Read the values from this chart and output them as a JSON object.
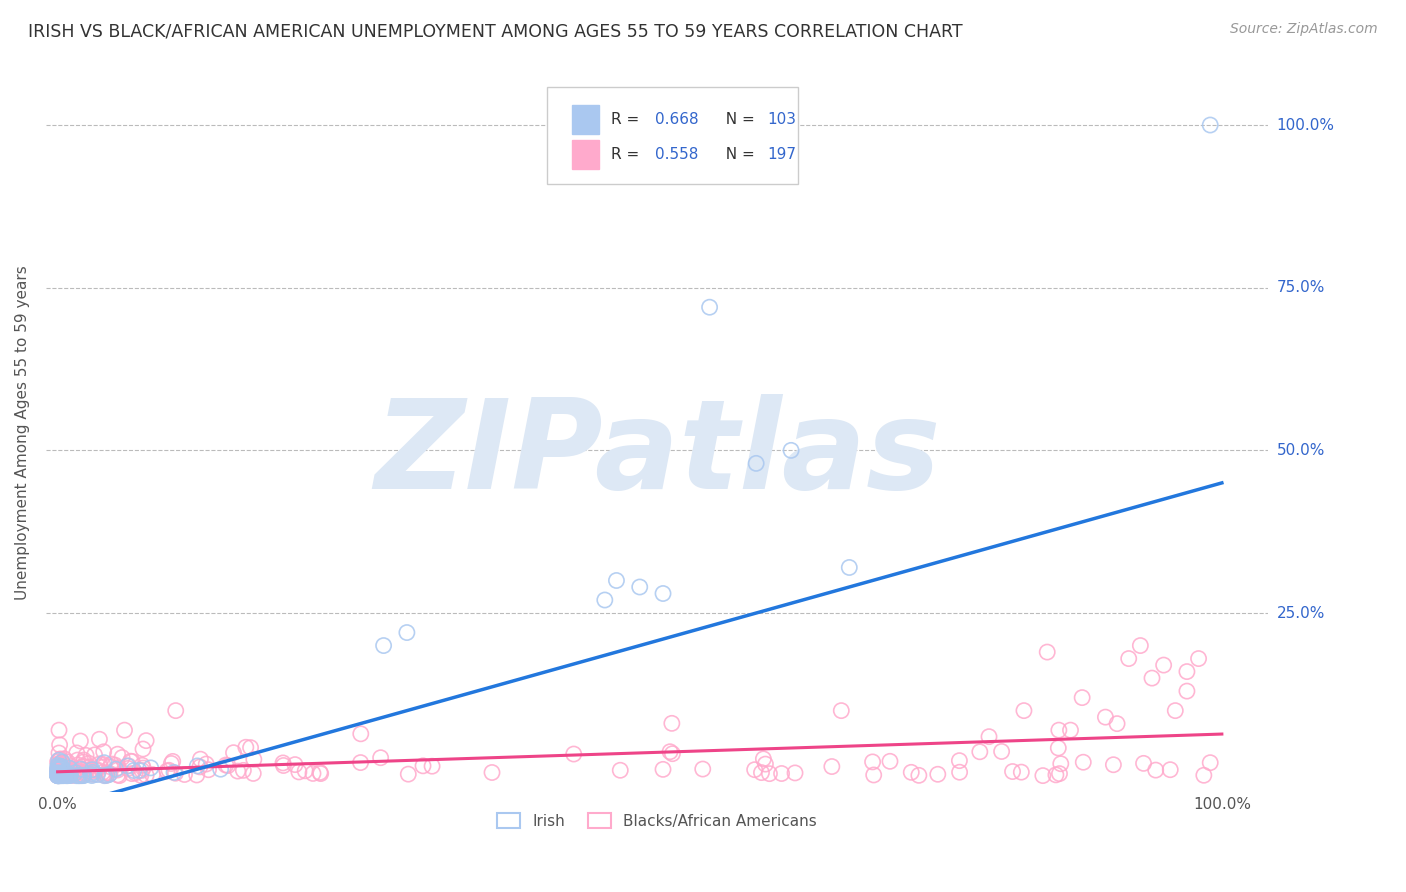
{
  "title": "IRISH VS BLACK/AFRICAN AMERICAN UNEMPLOYMENT AMONG AGES 55 TO 59 YEARS CORRELATION CHART",
  "source": "Source: ZipAtlas.com",
  "ylabel": "Unemployment Among Ages 55 to 59 years",
  "irish_R": 0.668,
  "irish_N": 103,
  "black_R": 0.558,
  "black_N": 197,
  "irish_color": "#aac8f0",
  "irish_line_color": "#2277dd",
  "black_color": "#ffaacc",
  "black_line_color": "#ee4488",
  "background_color": "#ffffff",
  "grid_color": "#bbbbbb",
  "title_color": "#333333",
  "source_color": "#999999",
  "stat_label_color": "#3366cc",
  "watermark": "ZIPatlas",
  "watermark_color": "#dde8f5",
  "legend_text_color": "#333333"
}
